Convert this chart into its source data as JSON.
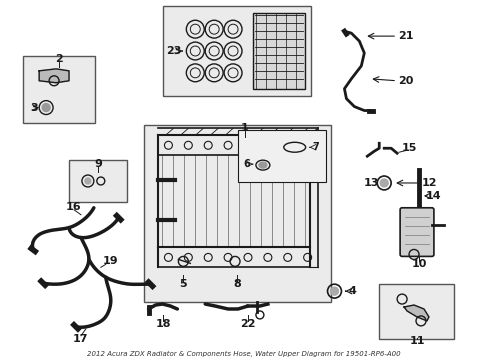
{
  "bg_color": "#ffffff",
  "line_color": "#1a1a1a",
  "box_fill": "#ebebeb",
  "box_edge": "#555555"
}
